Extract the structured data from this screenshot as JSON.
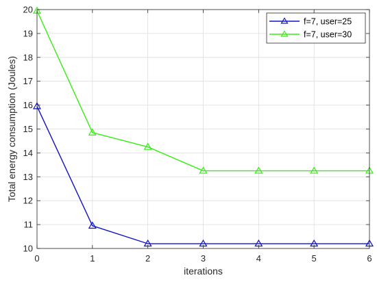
{
  "chart_data": {
    "type": "line",
    "title": "",
    "xlabel": "iterations",
    "ylabel": "Total energy consumption (Joules)",
    "x": [
      0,
      1,
      2,
      3,
      4,
      5,
      6
    ],
    "xlim": [
      0,
      6
    ],
    "ylim": [
      10,
      20
    ],
    "xticks": [
      0,
      1,
      2,
      3,
      4,
      5,
      6
    ],
    "yticks": [
      10,
      11,
      12,
      13,
      14,
      15,
      16,
      17,
      18,
      19,
      20
    ],
    "grid": true,
    "legend_position": "top-right",
    "marker": "triangle",
    "series": [
      {
        "name": "f=7, user=25",
        "color": "#1010c8",
        "values": [
          15.95,
          10.95,
          10.2,
          10.2,
          10.2,
          10.2,
          10.2
        ]
      },
      {
        "name": "f=7, user=30",
        "color": "#33ee11",
        "values": [
          19.95,
          14.85,
          14.25,
          13.25,
          13.25,
          13.25,
          13.25
        ]
      }
    ]
  }
}
